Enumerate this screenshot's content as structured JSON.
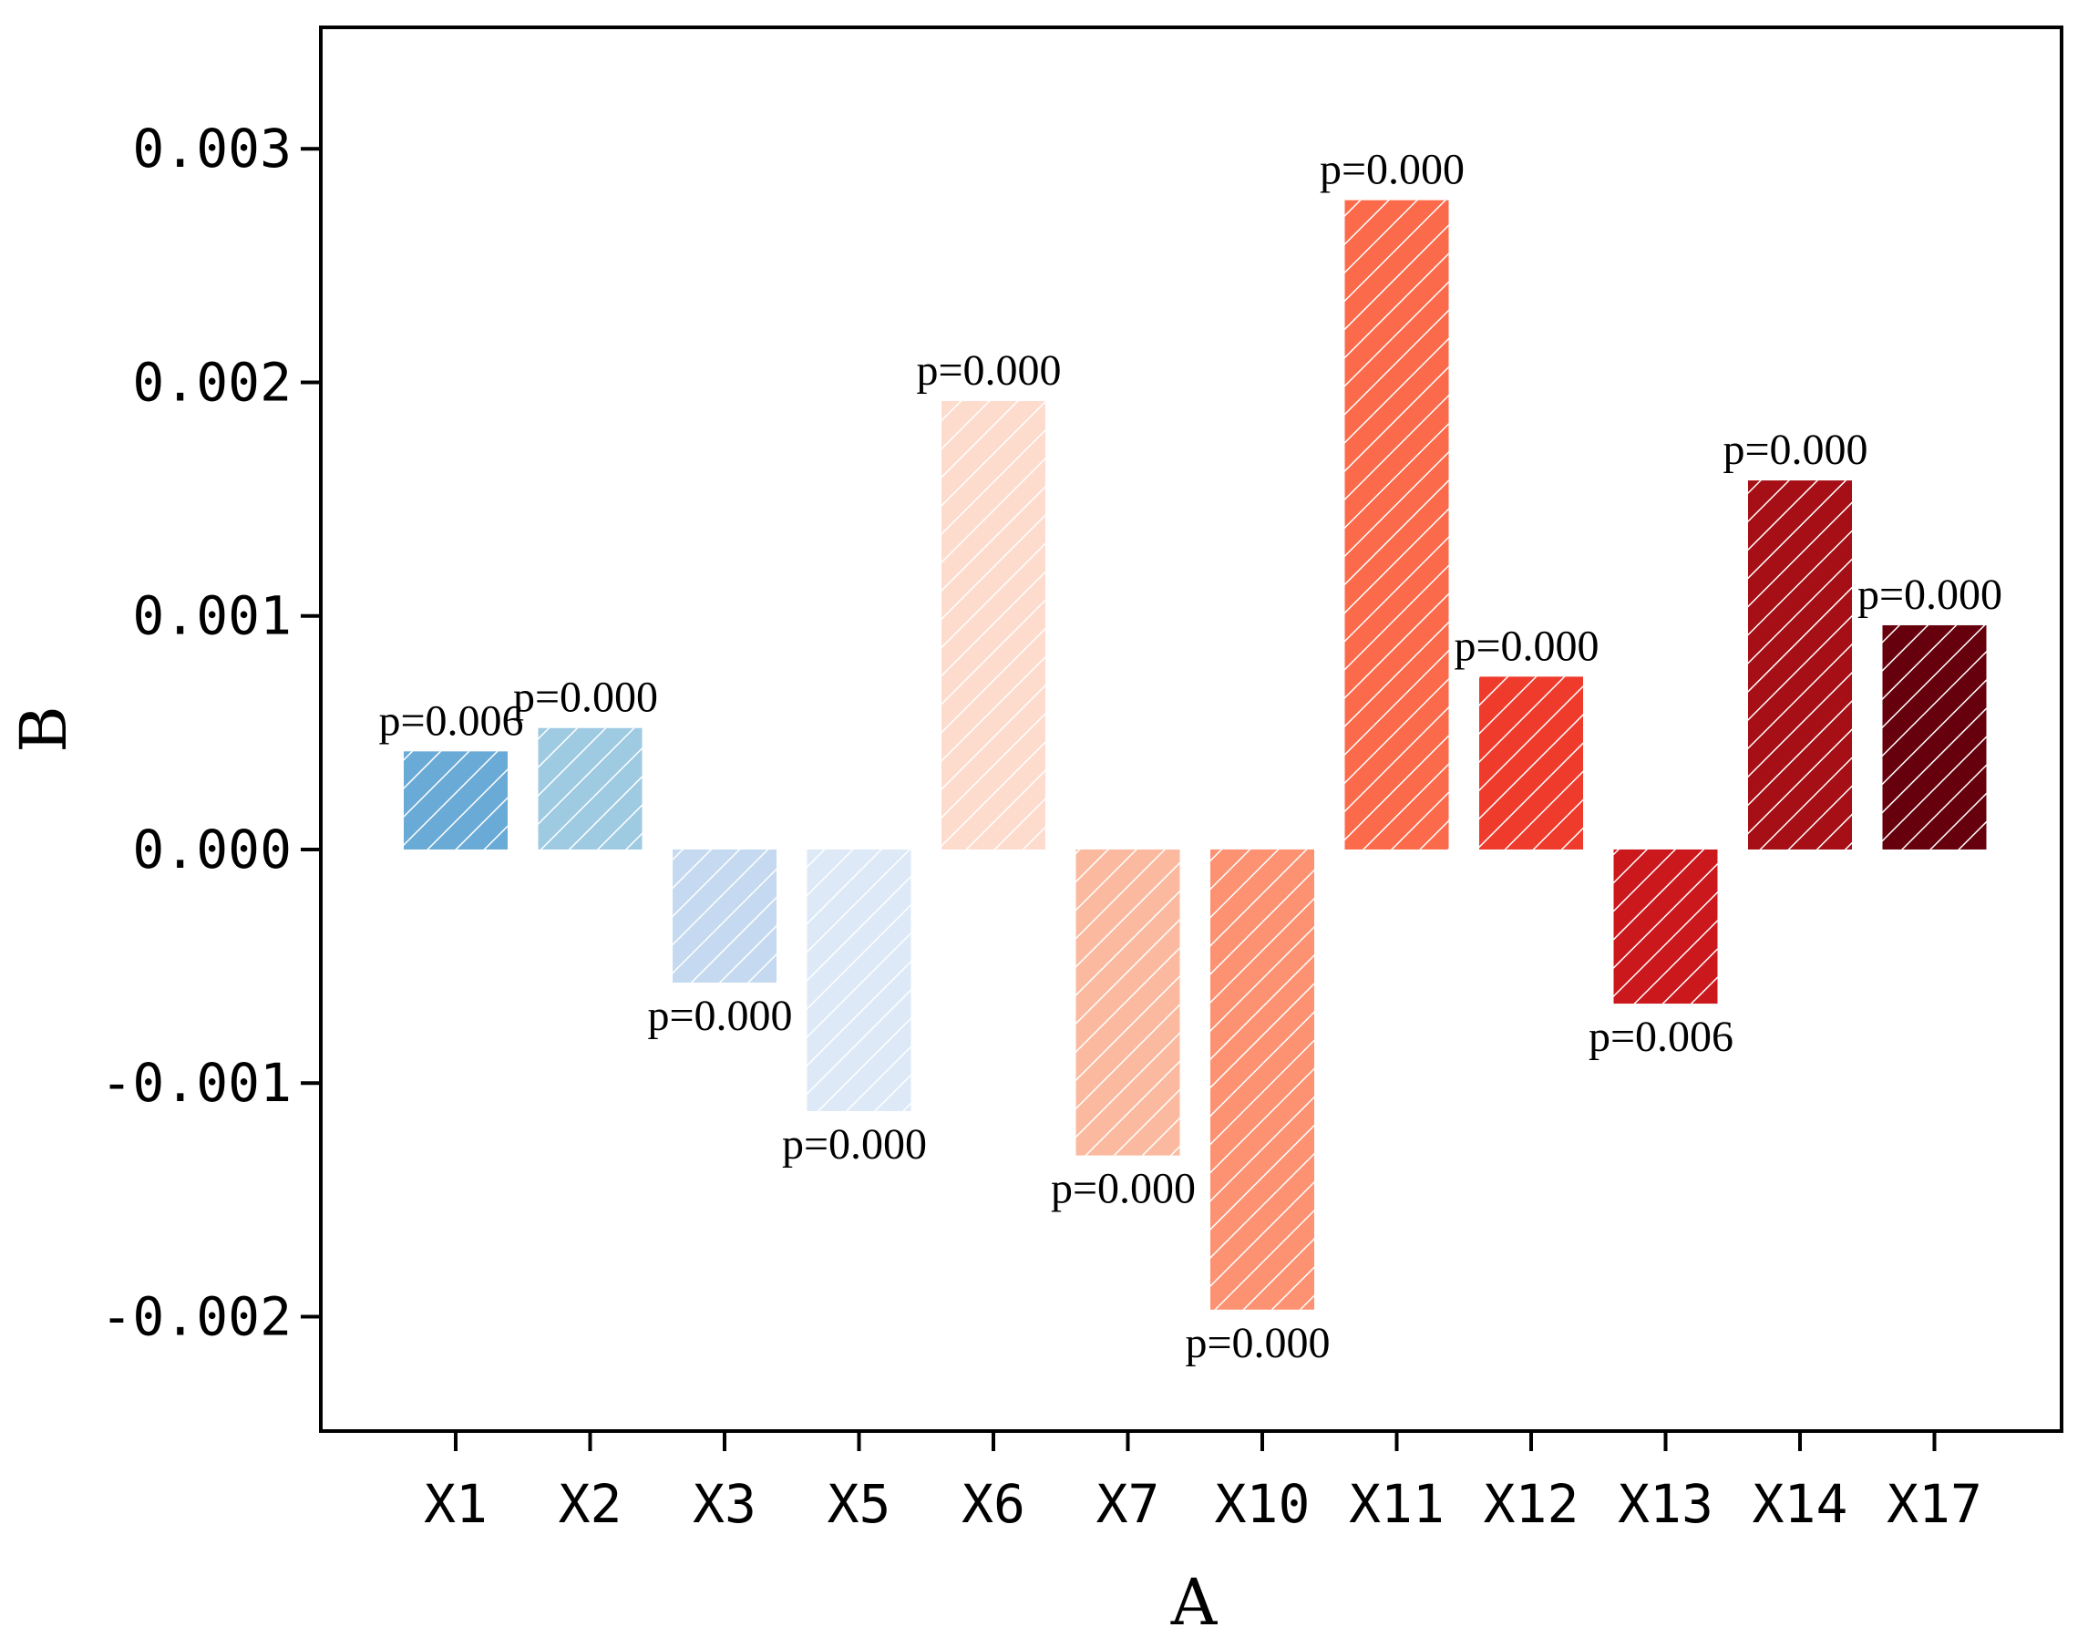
{
  "chart_data": {
    "type": "bar",
    "title": "",
    "xlabel": "A",
    "ylabel": "B",
    "ylim": [
      -0.00249,
      0.00352
    ],
    "yticks": [
      -0.002,
      -0.001,
      0.0,
      0.001,
      0.002,
      0.003
    ],
    "ytick_labels": [
      "-0.002",
      "-0.001",
      "0.000",
      "0.001",
      "0.002",
      "0.003"
    ],
    "grid": false,
    "bar_hatch": "diagonal white lines",
    "categories": [
      "X1",
      "X2",
      "X3",
      "X5",
      "X6",
      "X7",
      "X10",
      "X11",
      "X12",
      "X13",
      "X14",
      "X17"
    ],
    "values": [
      0.00042,
      0.00052,
      -0.00057,
      -0.00112,
      0.00192,
      -0.00131,
      -0.00197,
      0.00278,
      0.00074,
      -0.00066,
      0.00158,
      0.00096
    ],
    "p_labels": [
      "p=0.006",
      "p=0.000",
      "p=0.000",
      "p=0.000",
      "p=0.000",
      "p=0.000",
      "p=0.000",
      "p=0.000",
      "p=0.000",
      "p=0.006",
      "p=0.000",
      "p=0.000"
    ],
    "colors": [
      "#6aaad6",
      "#9ecae2",
      "#c5daf0",
      "#dde9f7",
      "#fddcce",
      "#fbbaa0",
      "#fc9272",
      "#fb6a4a",
      "#ef3b2c",
      "#cb181d",
      "#a50f15",
      "#67000d"
    ]
  }
}
